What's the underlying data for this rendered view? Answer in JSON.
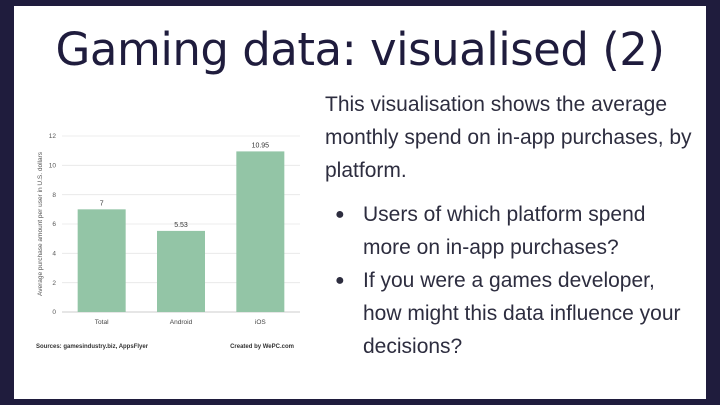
{
  "slide": {
    "title": "Gaming data: visualised (2)",
    "intro": "This visualisation shows the average monthly spend on in-app purchases, by platform.",
    "bullets": [
      "Users of which platform spend more on in-app purchases?",
      "If you were a games developer, how might this data influence your decisions?"
    ],
    "bullet_glyph": "●",
    "colors": {
      "border": "#1f1c3d",
      "title": "#1f1c3d",
      "bar": "#93c5a6"
    }
  },
  "chart_data": {
    "type": "bar",
    "categories": [
      "Total",
      "Android",
      "iOS"
    ],
    "values": [
      7,
      5.53,
      10.95
    ],
    "value_labels": [
      "7",
      "5.53",
      "10.95"
    ],
    "ylabel": "Average purchase amount per user in U.S. dollars",
    "ylim": [
      0,
      12
    ],
    "yticks": [
      "0",
      "2",
      "4",
      "6",
      "8",
      "10",
      "12"
    ],
    "grid": true,
    "footer_left": "Sources: gamesindustry.biz, AppsFlyer",
    "footer_right": "Created by WePC.com"
  }
}
